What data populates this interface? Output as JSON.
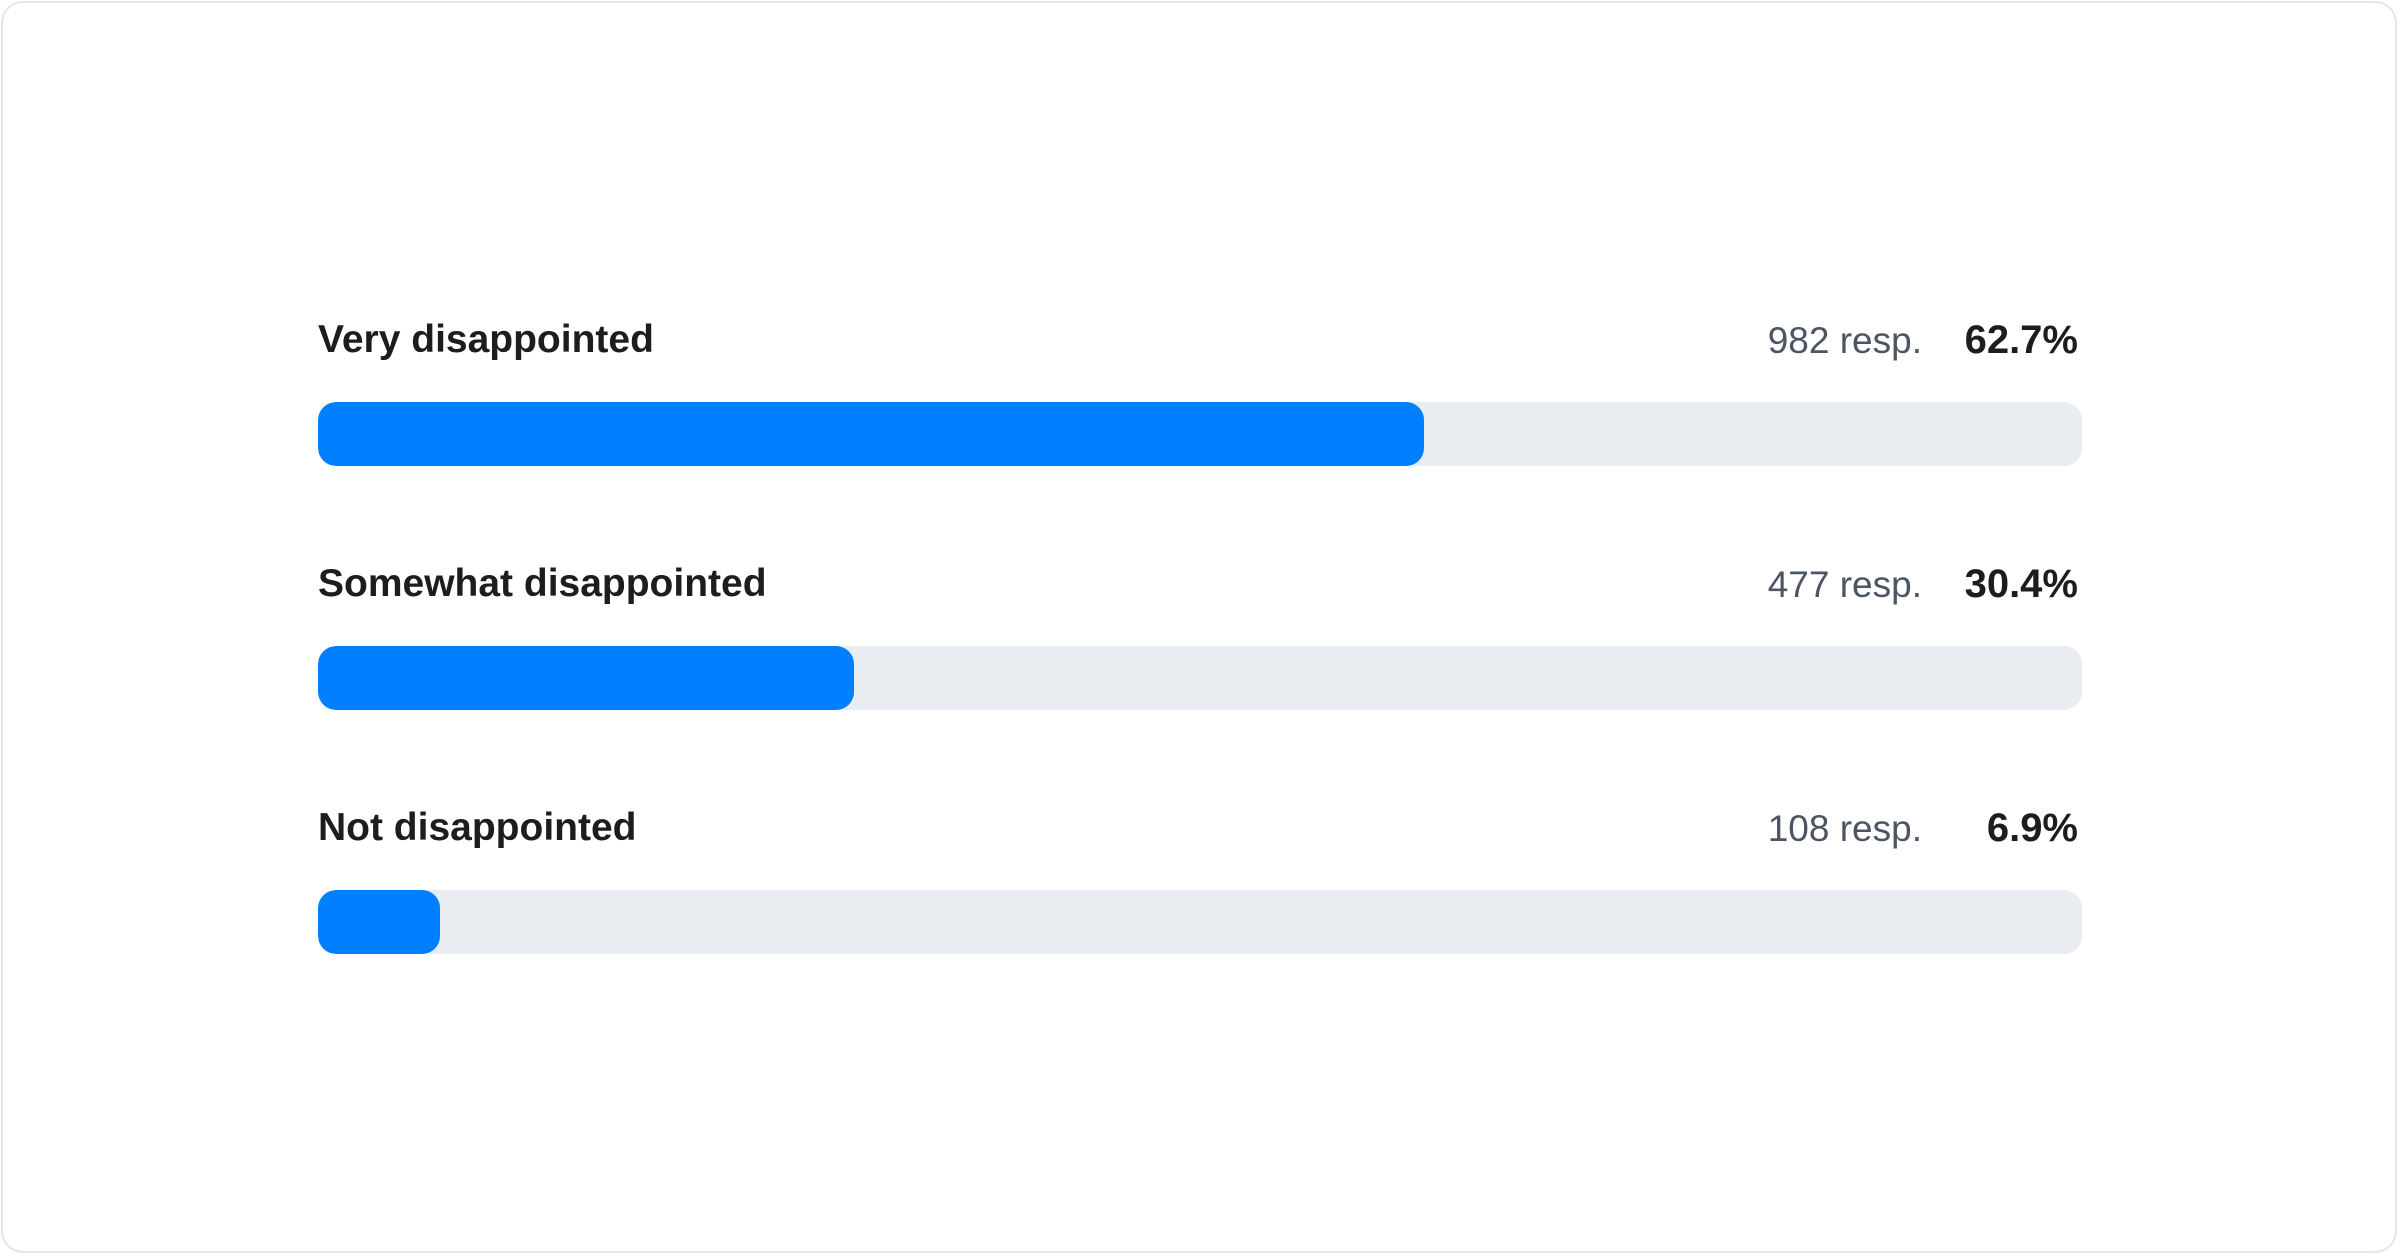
{
  "chart_data": {
    "type": "bar",
    "orientation": "horizontal",
    "categories": [
      "Very disappointed",
      "Somewhat disappointed",
      "Not disappointed"
    ],
    "responses": [
      982,
      477,
      108
    ],
    "values": [
      62.7,
      30.4,
      6.9
    ],
    "response_labels": [
      "982 resp.",
      "477 resp.",
      "108 resp."
    ],
    "value_labels": [
      "62.7%",
      "30.4%",
      "6.9%"
    ],
    "xlim": [
      0,
      100
    ],
    "unit": "%",
    "colors": {
      "fill": "#0080ff",
      "track": "#e9edf2"
    }
  }
}
